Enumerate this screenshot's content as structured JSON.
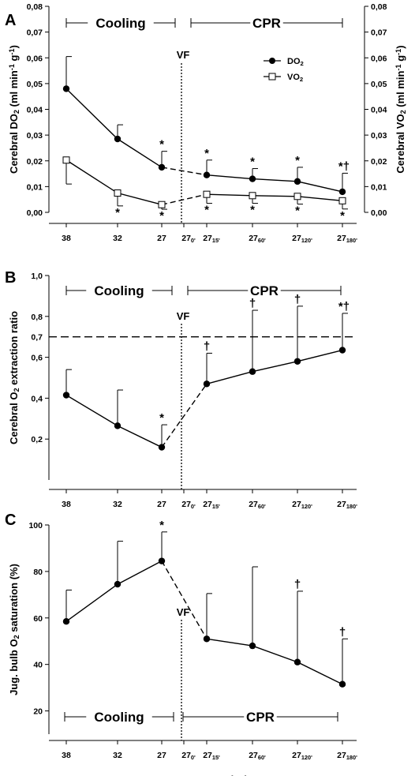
{
  "chart_data": [
    {
      "panel": "A",
      "type": "line",
      "categories": [
        "38",
        "32",
        "27",
        "27|0'",
        "27|15'",
        "27|60'",
        "27|120'",
        "27|180'"
      ],
      "ylabel_left": "Cerebral DO|2| (ml min|-1| g|-1|)",
      "ylabel_right": "Cerebral VO|2| (ml min|-1| g|-1|)",
      "ylim": [
        0,
        0.08
      ],
      "yticks": [
        "0,00",
        "0,01",
        "0,02",
        "0,03",
        "0,04",
        "0,05",
        "0,06",
        "0,07",
        "0,08"
      ],
      "phase_labels": [
        "Cooling",
        "CPR"
      ],
      "vf_label": "VF",
      "legend": [
        "DO|2|",
        "VO|2|"
      ],
      "series": [
        {
          "name": "DO|2|",
          "marker": "filled-circle",
          "x": [
            0,
            1,
            2,
            4,
            5,
            6,
            7
          ],
          "values": [
            0.048,
            0.0285,
            0.0175,
            0.0145,
            0.013,
            0.012,
            0.008
          ],
          "error_up": [
            0.0125,
            0.0055,
            0.0062,
            0.0058,
            0.004,
            0.0055,
            0.0072
          ],
          "error_down": [
            0,
            0,
            0,
            0,
            0,
            0,
            0
          ],
          "annotations": [
            "",
            "",
            "*",
            "*",
            "*",
            "*",
            "*†"
          ]
        },
        {
          "name": "VO|2|",
          "marker": "open-square",
          "x": [
            0,
            1,
            2,
            4,
            5,
            6,
            7
          ],
          "values": [
            0.0203,
            0.0075,
            0.003,
            0.007,
            0.0065,
            0.0062,
            0.0045
          ],
          "error_up": [
            0,
            0,
            0,
            0,
            0,
            0,
            0
          ],
          "error_down": [
            0.0093,
            0.005,
            0.0018,
            0.0035,
            0.003,
            0.003,
            0.0032
          ],
          "annotations": [
            "",
            "*",
            "*",
            "*",
            "*",
            "*",
            "*"
          ]
        }
      ]
    },
    {
      "panel": "B",
      "type": "line",
      "categories": [
        "38",
        "32",
        "27",
        "27|0'",
        "27|15'",
        "27|60'",
        "27|120'",
        "27|180'"
      ],
      "ylabel": "Cerebral O|2| extraction ratio",
      "ylim": [
        0,
        1
      ],
      "yticks": [
        "0,2",
        "0,4",
        "0,6",
        "0,8",
        "1,0"
      ],
      "reference_line": {
        "value": 0.7,
        "label": "0,7"
      },
      "phase_labels": [
        "Cooling",
        "CPR"
      ],
      "vf_label": "VF",
      "series": [
        {
          "x": [
            0,
            1,
            2,
            4,
            5,
            6,
            7
          ],
          "values": [
            0.415,
            0.265,
            0.16,
            0.47,
            0.53,
            0.58,
            0.635
          ],
          "error_up": [
            0.125,
            0.175,
            0.11,
            0.15,
            0.3,
            0.27,
            0.18
          ],
          "annotations": [
            "",
            "",
            "*",
            "†",
            "†",
            "†",
            "*†"
          ]
        }
      ]
    },
    {
      "panel": "C",
      "type": "line",
      "categories": [
        "38",
        "32",
        "27",
        "27|0'",
        "27|15'",
        "27|60'",
        "27|120'",
        "27|180'"
      ],
      "ylabel": "Jug. bulb O|2| saturation (%)",
      "xlabel": "Temperature (°C)",
      "ylim": [
        10,
        100
      ],
      "yticks": [
        "20",
        "40",
        "60",
        "80",
        "100"
      ],
      "phase_labels": [
        "Cooling",
        "CPR"
      ],
      "vf_label": "VF",
      "series": [
        {
          "x": [
            0,
            1,
            2,
            4,
            5,
            6,
            7
          ],
          "values": [
            58.5,
            74.5,
            84.5,
            51,
            48,
            41,
            31.5
          ],
          "error_up": [
            13.5,
            18.5,
            12.5,
            19.5,
            34,
            30.5,
            19.5
          ],
          "annotations": [
            "",
            "",
            "*",
            "",
            "",
            "†",
            "†"
          ]
        }
      ]
    }
  ]
}
